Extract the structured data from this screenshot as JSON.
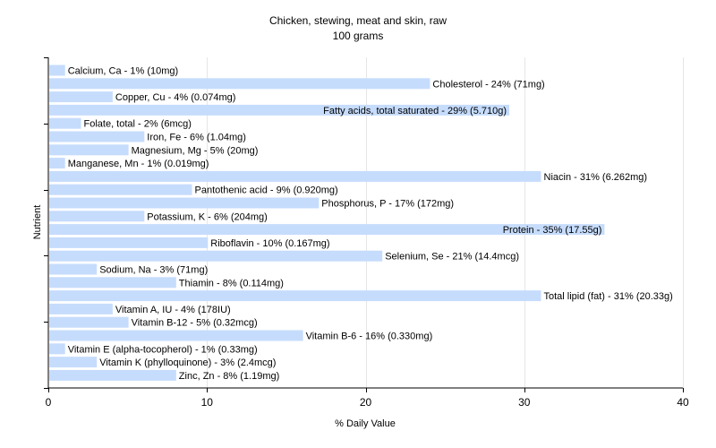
{
  "chart_data": {
    "type": "bar",
    "orientation": "horizontal",
    "title": "Chicken, stewing, meat and skin, raw",
    "subtitle": "100 grams",
    "xlabel": "% Daily Value",
    "ylabel": "Nutrient",
    "xlim": [
      0,
      40
    ],
    "xticks": [
      0,
      10,
      20,
      30,
      40
    ],
    "grid": true,
    "bar_color": "#c6dcfc",
    "bars": [
      {
        "label": "Calcium, Ca - 1% (10mg)",
        "value": 1
      },
      {
        "label": "Cholesterol - 24% (71mg)",
        "value": 24
      },
      {
        "label": "Copper, Cu - 4% (0.074mg)",
        "value": 4
      },
      {
        "label": "Fatty acids, total saturated - 29% (5.710g)",
        "value": 29
      },
      {
        "label": "Folate, total - 2% (6mcg)",
        "value": 2
      },
      {
        "label": "Iron, Fe - 6% (1.04mg)",
        "value": 6
      },
      {
        "label": "Magnesium, Mg - 5% (20mg)",
        "value": 5
      },
      {
        "label": "Manganese, Mn - 1% (0.019mg)",
        "value": 1
      },
      {
        "label": "Niacin - 31% (6.262mg)",
        "value": 31
      },
      {
        "label": "Pantothenic acid - 9% (0.920mg)",
        "value": 9
      },
      {
        "label": "Phosphorus, P - 17% (172mg)",
        "value": 17
      },
      {
        "label": "Potassium, K - 6% (204mg)",
        "value": 6
      },
      {
        "label": "Protein - 35% (17.55g)",
        "value": 35
      },
      {
        "label": "Riboflavin - 10% (0.167mg)",
        "value": 10
      },
      {
        "label": "Selenium, Se - 21% (14.4mcg)",
        "value": 21
      },
      {
        "label": "Sodium, Na - 3% (71mg)",
        "value": 3
      },
      {
        "label": "Thiamin - 8% (0.114mg)",
        "value": 8
      },
      {
        "label": "Total lipid (fat) - 31% (20.33g)",
        "value": 31
      },
      {
        "label": "Vitamin A, IU - 4% (178IU)",
        "value": 4
      },
      {
        "label": "Vitamin B-12 - 5% (0.32mcg)",
        "value": 5
      },
      {
        "label": "Vitamin B-6 - 16% (0.330mg)",
        "value": 16
      },
      {
        "label": "Vitamin E (alpha-tocopherol) - 1% (0.33mg)",
        "value": 1
      },
      {
        "label": "Vitamin K (phylloquinone) - 3% (2.4mcg)",
        "value": 3
      },
      {
        "label": "Zinc, Zn - 8% (1.19mg)",
        "value": 8
      }
    ]
  }
}
